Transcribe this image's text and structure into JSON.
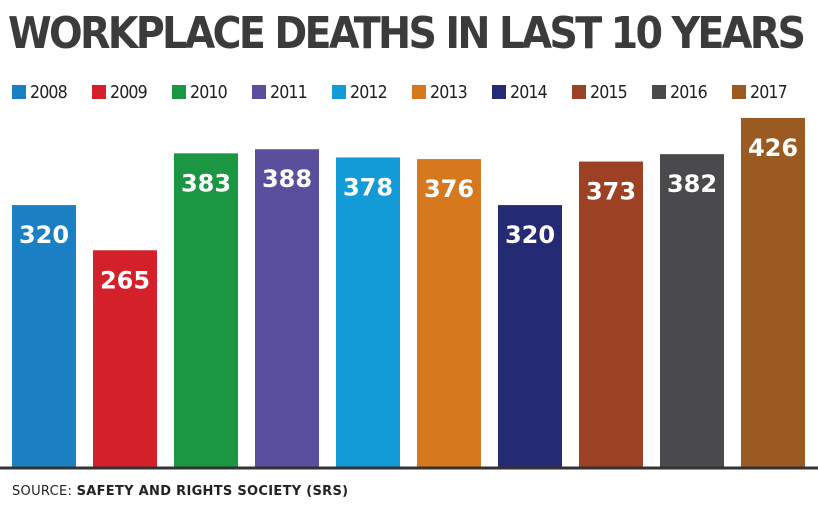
{
  "chart_data": {
    "type": "bar",
    "title": "WORKPLACE  DEATHS IN LAST 10 YEARS",
    "categories": [
      "2008",
      "2009",
      "2010",
      "2011",
      "2012",
      "2013",
      "2014",
      "2015",
      "2016",
      "2017"
    ],
    "values": [
      320,
      265,
      383,
      388,
      378,
      376,
      320,
      373,
      382,
      426
    ],
    "colors": [
      "#1b7fc3",
      "#d3202a",
      "#1b9642",
      "#5a4f9c",
      "#129bd6",
      "#d6781e",
      "#242a74",
      "#9c4124",
      "#4a4a4c",
      "#9b5a22"
    ],
    "xlabel": "",
    "ylabel": "",
    "ylim": [
      0,
      426
    ],
    "legend": "top",
    "grid": false
  },
  "source": {
    "prefix": "SOURCE: ",
    "name": "SAFETY AND RIGHTS SOCIETY (SRS)"
  }
}
